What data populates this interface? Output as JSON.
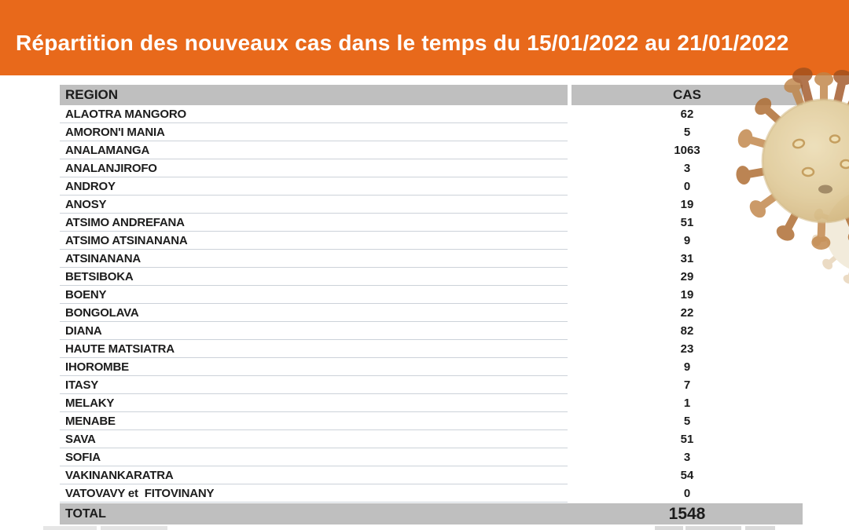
{
  "header": {
    "title": "Répartition des nouveaux cas dans le temps du 15/01/2022 au 21/01/2022",
    "band_color": "#E8691B"
  },
  "table": {
    "columns": [
      "REGION",
      "CAS"
    ],
    "header_bg": "#BFBFBF",
    "row_line_color": "#ccd2d9",
    "rows": [
      {
        "region": "ALAOTRA MANGORO",
        "cas": "62"
      },
      {
        "region": "AMORON'I MANIA",
        "cas": "5"
      },
      {
        "region": "ANALAMANGA",
        "cas": "1063"
      },
      {
        "region": "ANALANJIROFO",
        "cas": "3"
      },
      {
        "region": "ANDROY",
        "cas": "0"
      },
      {
        "region": "ANOSY",
        "cas": "19"
      },
      {
        "region": "ATSIMO ANDREFANA",
        "cas": "51"
      },
      {
        "region": "ATSIMO ATSINANANA",
        "cas": "9"
      },
      {
        "region": "ATSINANANA",
        "cas": "31"
      },
      {
        "region": "BETSIBOKA",
        "cas": "29"
      },
      {
        "region": "BOENY",
        "cas": "19"
      },
      {
        "region": "BONGOLAVA",
        "cas": "22"
      },
      {
        "region": "DIANA",
        "cas": "82"
      },
      {
        "region": "HAUTE MATSIATRA",
        "cas": "23"
      },
      {
        "region": "IHOROMBE",
        "cas": "9"
      },
      {
        "region": "ITASY",
        "cas": "7"
      },
      {
        "region": "MELAKY",
        "cas": "1"
      },
      {
        "region": "MENABE",
        "cas": "5"
      },
      {
        "region": "SAVA",
        "cas": "51"
      },
      {
        "region": "SOFIA",
        "cas": "3"
      },
      {
        "region": "VAKINANKARATRA",
        "cas": "54"
      },
      {
        "region": "VATOVAVY et  FITOVINANY",
        "cas": "0"
      }
    ],
    "total": {
      "label": "TOTAL",
      "value": "1548"
    }
  },
  "decoration": {
    "virus_icon": "coronavirus-illustration",
    "body_color": "#dcc48d",
    "spike_color": "#b9753a",
    "dark_spike_color": "#9c4f1d"
  }
}
